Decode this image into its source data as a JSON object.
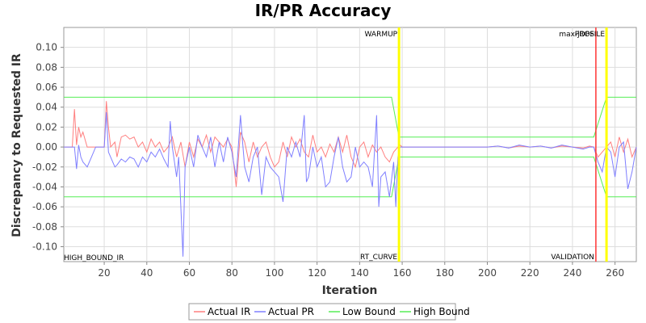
{
  "chart_data": {
    "type": "line",
    "title": "IR/PR Accuracy",
    "xlabel": "Iteration",
    "ylabel": "Discrepancy to Requested IR",
    "xlim": [
      1,
      270
    ],
    "ylim": [
      -0.115,
      0.12
    ],
    "x_ticks": [
      20,
      40,
      60,
      80,
      100,
      120,
      140,
      160,
      180,
      200,
      220,
      240,
      260
    ],
    "y_ticks": [
      -0.1,
      -0.08,
      -0.06,
      -0.04,
      -0.02,
      0.0,
      0.02,
      0.04,
      0.06,
      0.08,
      0.1
    ],
    "y_tick_labels": [
      "-0.10",
      "-0.08",
      "-0.06",
      "-0.04",
      "-0.02",
      "0.00",
      "0.02",
      "0.04",
      "0.06",
      "0.08",
      "0.10"
    ],
    "grid": true,
    "legend_position": "bottom",
    "markers": [
      {
        "name": "WARMUP",
        "x": 158.5,
        "color": "#ffff00",
        "label_position": "top"
      },
      {
        "name": "RT_CURVE",
        "x": 158.5,
        "color": "#ffff00",
        "label_position": "bottom"
      },
      {
        "name": "max-jOPS",
        "x": 251,
        "color": "#ff3333",
        "label_position": "top"
      },
      {
        "name": "VALIDATION",
        "x": 251,
        "color": "#ff3333",
        "label_position": "bottom"
      },
      {
        "name": "PROFILE",
        "x": 256,
        "color": "#ffff00",
        "label_position": "top"
      }
    ],
    "corner_label": "HIGH_BOUND_IR",
    "series": [
      {
        "name": "Actual IR",
        "color": "#ff7f7f",
        "points": [
          [
            1,
            0
          ],
          [
            5,
            0
          ],
          [
            6,
            0.038
          ],
          [
            7,
            0.002
          ],
          [
            8,
            0.02
          ],
          [
            9,
            0.01
          ],
          [
            10,
            0.015
          ],
          [
            12,
            0
          ],
          [
            15,
            0
          ],
          [
            18,
            0
          ],
          [
            20,
            0
          ],
          [
            21,
            0.046
          ],
          [
            22,
            0.02
          ],
          [
            23,
            0
          ],
          [
            25,
            0.005
          ],
          [
            26,
            -0.01
          ],
          [
            28,
            0.01
          ],
          [
            30,
            0.012
          ],
          [
            32,
            0.008
          ],
          [
            34,
            0.01
          ],
          [
            36,
            0
          ],
          [
            38,
            0.005
          ],
          [
            40,
            -0.005
          ],
          [
            42,
            0.008
          ],
          [
            44,
            0
          ],
          [
            46,
            0.005
          ],
          [
            48,
            -0.005
          ],
          [
            50,
            0
          ],
          [
            52,
            0.01
          ],
          [
            54,
            -0.01
          ],
          [
            56,
            0.005
          ],
          [
            58,
            -0.02
          ],
          [
            60,
            0.005
          ],
          [
            62,
            -0.01
          ],
          [
            64,
            0.008
          ],
          [
            66,
            0
          ],
          [
            68,
            0.012
          ],
          [
            70,
            -0.005
          ],
          [
            72,
            0.01
          ],
          [
            74,
            0.005
          ],
          [
            76,
            0
          ],
          [
            78,
            0.008
          ],
          [
            80,
            0
          ],
          [
            82,
            -0.04
          ],
          [
            84,
            0.015
          ],
          [
            86,
            0.005
          ],
          [
            88,
            -0.015
          ],
          [
            90,
            0.005
          ],
          [
            92,
            -0.01
          ],
          [
            94,
            0
          ],
          [
            96,
            0.005
          ],
          [
            98,
            -0.01
          ],
          [
            100,
            -0.02
          ],
          [
            102,
            -0.015
          ],
          [
            104,
            0.005
          ],
          [
            106,
            -0.01
          ],
          [
            108,
            0.01
          ],
          [
            110,
            0
          ],
          [
            112,
            0.008
          ],
          [
            114,
            -0.005
          ],
          [
            116,
            -0.01
          ],
          [
            118,
            0.012
          ],
          [
            120,
            -0.005
          ],
          [
            122,
            0
          ],
          [
            124,
            -0.01
          ],
          [
            126,
            0.003
          ],
          [
            128,
            -0.005
          ],
          [
            130,
            0.01
          ],
          [
            132,
            -0.005
          ],
          [
            134,
            0.012
          ],
          [
            136,
            -0.01
          ],
          [
            138,
            -0.02
          ],
          [
            140,
            0
          ],
          [
            142,
            0.005
          ],
          [
            144,
            -0.01
          ],
          [
            146,
            0.002
          ],
          [
            148,
            -0.005
          ],
          [
            150,
            0
          ],
          [
            152,
            -0.01
          ],
          [
            154,
            -0.015
          ],
          [
            156,
            -0.005
          ],
          [
            158,
            0
          ],
          [
            159,
            0.002
          ],
          [
            160,
            0
          ],
          [
            170,
            0
          ],
          [
            180,
            0
          ],
          [
            190,
            0
          ],
          [
            200,
            0
          ],
          [
            205,
            0.001
          ],
          [
            210,
            -0.001
          ],
          [
            215,
            0.001
          ],
          [
            220,
            0
          ],
          [
            225,
            0.001
          ],
          [
            230,
            -0.001
          ],
          [
            235,
            0.001
          ],
          [
            240,
            0
          ],
          [
            245,
            -0.001
          ],
          [
            248,
            0.001
          ],
          [
            250,
            0
          ],
          [
            252,
            -0.01
          ],
          [
            254,
            -0.005
          ],
          [
            256,
            0
          ],
          [
            258,
            0.005
          ],
          [
            260,
            -0.01
          ],
          [
            262,
            0.01
          ],
          [
            264,
            -0.005
          ],
          [
            266,
            0.008
          ],
          [
            268,
            -0.01
          ],
          [
            270,
            0
          ]
        ]
      },
      {
        "name": "Actual PR",
        "color": "#7f7fff",
        "points": [
          [
            1,
            0
          ],
          [
            5,
            0
          ],
          [
            6,
            0
          ],
          [
            7,
            -0.022
          ],
          [
            8,
            0.002
          ],
          [
            9,
            -0.01
          ],
          [
            10,
            -0.015
          ],
          [
            12,
            -0.02
          ],
          [
            14,
            -0.01
          ],
          [
            16,
            0
          ],
          [
            18,
            0
          ],
          [
            20,
            0
          ],
          [
            21,
            0.035
          ],
          [
            22,
            -0.005
          ],
          [
            24,
            -0.015
          ],
          [
            25,
            -0.02
          ],
          [
            26,
            -0.018
          ],
          [
            28,
            -0.012
          ],
          [
            30,
            -0.015
          ],
          [
            32,
            -0.01
          ],
          [
            34,
            -0.012
          ],
          [
            36,
            -0.02
          ],
          [
            38,
            -0.01
          ],
          [
            40,
            -0.015
          ],
          [
            42,
            -0.005
          ],
          [
            44,
            -0.01
          ],
          [
            46,
            -0.002
          ],
          [
            48,
            -0.012
          ],
          [
            50,
            -0.02
          ],
          [
            51,
            0.026
          ],
          [
            52,
            0
          ],
          [
            54,
            -0.03
          ],
          [
            55,
            -0.01
          ],
          [
            57,
            -0.11
          ],
          [
            58,
            -0.02
          ],
          [
            60,
            0
          ],
          [
            62,
            -0.02
          ],
          [
            64,
            0.012
          ],
          [
            66,
            0
          ],
          [
            68,
            -0.01
          ],
          [
            70,
            0.01
          ],
          [
            72,
            -0.02
          ],
          [
            74,
            0.005
          ],
          [
            76,
            -0.015
          ],
          [
            78,
            0.01
          ],
          [
            80,
            -0.005
          ],
          [
            82,
            -0.03
          ],
          [
            84,
            0.032
          ],
          [
            85,
            0.005
          ],
          [
            86,
            -0.02
          ],
          [
            88,
            -0.035
          ],
          [
            90,
            -0.01
          ],
          [
            92,
            0
          ],
          [
            94,
            -0.048
          ],
          [
            96,
            -0.01
          ],
          [
            98,
            -0.02
          ],
          [
            100,
            -0.025
          ],
          [
            102,
            -0.03
          ],
          [
            104,
            -0.055
          ],
          [
            106,
            0
          ],
          [
            108,
            -0.01
          ],
          [
            110,
            0.005
          ],
          [
            112,
            -0.01
          ],
          [
            114,
            0.032
          ],
          [
            115,
            -0.035
          ],
          [
            116,
            -0.03
          ],
          [
            118,
            0
          ],
          [
            120,
            -0.02
          ],
          [
            122,
            -0.01
          ],
          [
            124,
            -0.04
          ],
          [
            126,
            -0.035
          ],
          [
            128,
            -0.01
          ],
          [
            130,
            0.01
          ],
          [
            132,
            -0.02
          ],
          [
            134,
            -0.035
          ],
          [
            136,
            -0.03
          ],
          [
            138,
            0
          ],
          [
            140,
            -0.02
          ],
          [
            142,
            -0.015
          ],
          [
            144,
            -0.02
          ],
          [
            146,
            -0.04
          ],
          [
            148,
            0.032
          ],
          [
            149,
            -0.06
          ],
          [
            150,
            -0.03
          ],
          [
            152,
            -0.025
          ],
          [
            154,
            -0.05
          ],
          [
            156,
            -0.015
          ],
          [
            157,
            -0.06
          ],
          [
            158,
            -0.01
          ],
          [
            159,
            0
          ],
          [
            160,
            0
          ],
          [
            170,
            0
          ],
          [
            180,
            0
          ],
          [
            190,
            0
          ],
          [
            200,
            0
          ],
          [
            205,
            0.001
          ],
          [
            210,
            -0.001
          ],
          [
            215,
            0.002
          ],
          [
            220,
            0
          ],
          [
            225,
            0.001
          ],
          [
            230,
            -0.001
          ],
          [
            235,
            0.002
          ],
          [
            240,
            0
          ],
          [
            245,
            -0.002
          ],
          [
            248,
            0
          ],
          [
            250,
            0
          ],
          [
            252,
            -0.015
          ],
          [
            254,
            -0.025
          ],
          [
            256,
            0
          ],
          [
            258,
            -0.005
          ],
          [
            260,
            -0.03
          ],
          [
            262,
            0
          ],
          [
            264,
            0.005
          ],
          [
            266,
            -0.042
          ],
          [
            268,
            -0.025
          ],
          [
            270,
            0
          ]
        ]
      },
      {
        "name": "Low Bound",
        "color": "#55ee55",
        "points": [
          [
            1,
            -0.05
          ],
          [
            155,
            -0.05
          ],
          [
            158.5,
            -0.01
          ],
          [
            250,
            -0.01
          ],
          [
            256,
            -0.05
          ],
          [
            270,
            -0.05
          ]
        ]
      },
      {
        "name": "High Bound",
        "color": "#55ee55",
        "points": [
          [
            1,
            0.05
          ],
          [
            155,
            0.05
          ],
          [
            158.5,
            0.01
          ],
          [
            250,
            0.01
          ],
          [
            256,
            0.05
          ],
          [
            270,
            0.05
          ]
        ]
      }
    ]
  }
}
